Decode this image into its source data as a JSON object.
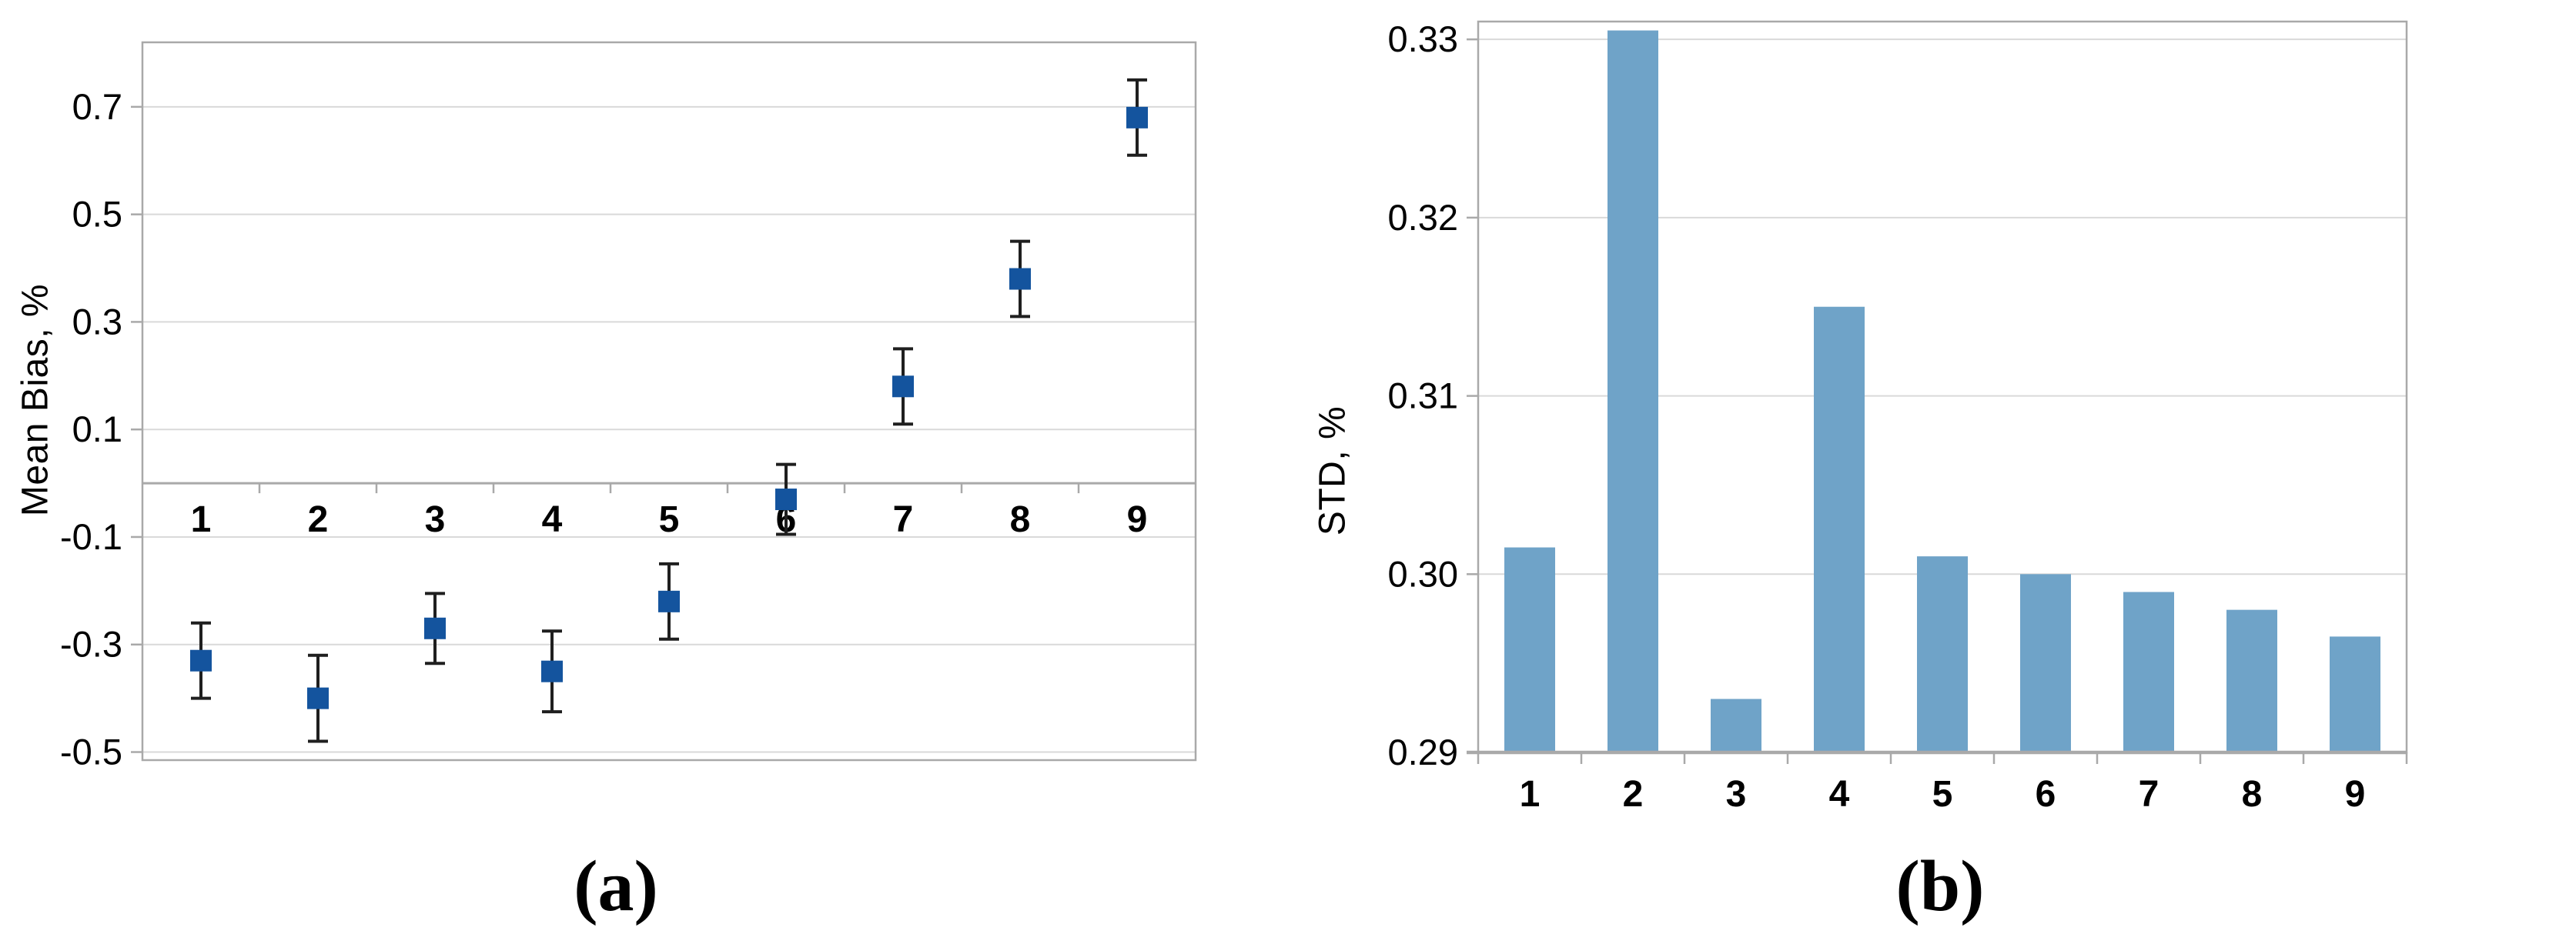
{
  "figure": {
    "captions": {
      "a": "(a)",
      "b": "(b)"
    }
  },
  "colors": {
    "marker_blue": "#14549e",
    "error_bar": "#1f1f1f",
    "bar_blue": "#6fa3c8",
    "gridline": "#d9d9d9",
    "axis_border": "#a9a9a9",
    "text": "#000000"
  },
  "chart_data": [
    {
      "id": "a",
      "type": "scatter",
      "ylabel": "Mean Bias, %",
      "categories": [
        "1",
        "2",
        "3",
        "4",
        "5",
        "6",
        "7",
        "8",
        "9"
      ],
      "values": [
        -0.33,
        -0.4,
        -0.27,
        -0.35,
        -0.22,
        -0.03,
        0.18,
        0.38,
        0.68
      ],
      "errors": [
        0.07,
        0.08,
        0.065,
        0.075,
        0.07,
        0.065,
        0.07,
        0.07,
        0.07
      ],
      "ytick_labels": [
        "0.7",
        "0.5",
        "0.3",
        "0.1",
        "-0.1",
        "-0.3",
        "-0.5"
      ],
      "ytick_values": [
        0.7,
        0.5,
        0.3,
        0.1,
        -0.1,
        -0.3,
        -0.5
      ],
      "ylim": [
        -0.515,
        0.82
      ],
      "grid": true,
      "legend": "none",
      "marker_color": "#14549e",
      "error_color": "#1f1f1f"
    },
    {
      "id": "b",
      "type": "bar",
      "ylabel": "STD, %",
      "categories": [
        "1",
        "2",
        "3",
        "4",
        "5",
        "6",
        "7",
        "8",
        "9"
      ],
      "values": [
        0.3015,
        0.3305,
        0.293,
        0.315,
        0.301,
        0.3,
        0.299,
        0.298,
        0.2965
      ],
      "ytick_labels": [
        "0.33",
        "0.32",
        "0.31",
        "0.30",
        "0.29"
      ],
      "ytick_values": [
        0.33,
        0.32,
        0.31,
        0.3,
        0.29
      ],
      "ylim": [
        0.29,
        0.331
      ],
      "grid": true,
      "legend": "none",
      "bar_color": "#6fa3c8"
    }
  ]
}
